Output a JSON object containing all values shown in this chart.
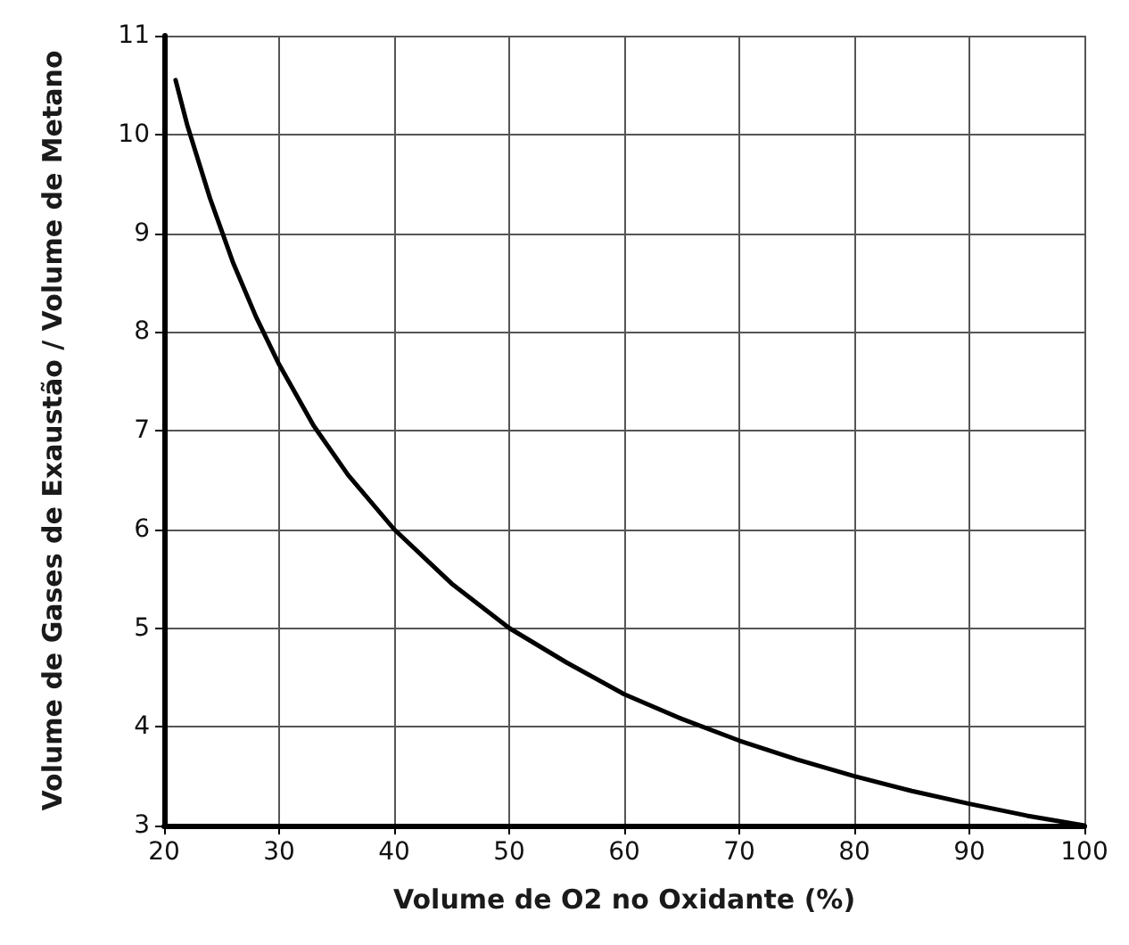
{
  "chart_data": {
    "type": "line",
    "xlabel": "Volume de O2 no Oxidante (%)",
    "ylabel": "Volume de Gases de Exaustão / Volume de Metano",
    "x": [
      21,
      22,
      24,
      26,
      28,
      30,
      33,
      36,
      40,
      45,
      50,
      55,
      60,
      65,
      70,
      75,
      80,
      85,
      90,
      95,
      100
    ],
    "series": [
      {
        "color": "#000000",
        "values": [
          10.55,
          10.1,
          9.35,
          8.7,
          8.15,
          7.67,
          7.05,
          6.55,
          6.0,
          5.45,
          5.0,
          4.65,
          4.33,
          4.08,
          3.86,
          3.67,
          3.5,
          3.35,
          3.22,
          3.1,
          3.0
        ]
      }
    ],
    "xlim": [
      20,
      100
    ],
    "xticks": [
      20,
      30,
      40,
      50,
      60,
      70,
      80,
      90,
      100
    ],
    "ylim": [
      3,
      11
    ],
    "yticks": [
      3,
      4,
      5,
      6,
      7,
      8,
      9,
      10,
      11
    ],
    "grid": true,
    "marker": "none",
    "line_style": "solid"
  }
}
